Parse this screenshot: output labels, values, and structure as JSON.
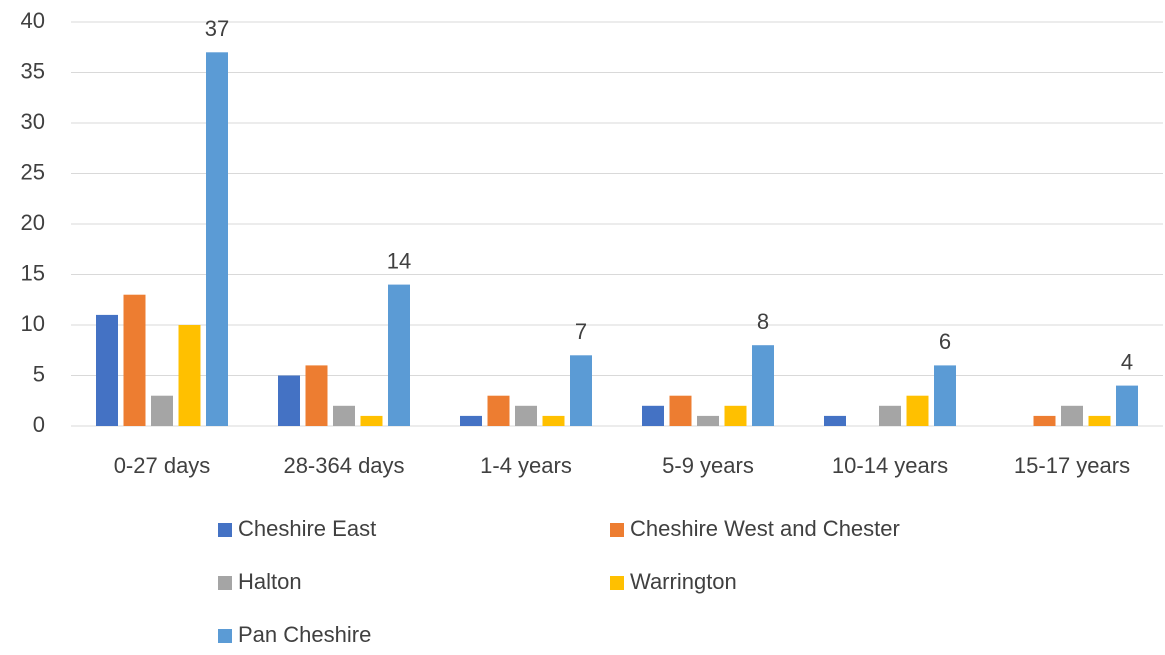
{
  "chart_data": {
    "type": "bar",
    "categories": [
      "0-27 days",
      "28-364 days",
      "1-4 years",
      "5-9 years",
      "10-14 years",
      "15-17 years"
    ],
    "series": [
      {
        "name": "Cheshire East",
        "color": "#4472c4",
        "values": [
          11,
          5,
          1,
          2,
          1,
          0
        ]
      },
      {
        "name": "Cheshire West and Chester",
        "color": "#ed7d31",
        "values": [
          13,
          6,
          3,
          3,
          0,
          1
        ]
      },
      {
        "name": "Halton",
        "color": "#a5a5a5",
        "values": [
          3,
          2,
          2,
          1,
          2,
          2
        ]
      },
      {
        "name": "Warrington",
        "color": "#ffc000",
        "values": [
          10,
          1,
          1,
          2,
          3,
          1
        ]
      },
      {
        "name": "Pan Cheshire",
        "color": "#5b9bd5",
        "values": [
          37,
          14,
          7,
          8,
          6,
          4
        ],
        "data_labels": true
      }
    ],
    "ylim": [
      0,
      40
    ],
    "yticks": [
      0,
      5,
      10,
      15,
      20,
      25,
      30,
      35,
      40
    ],
    "grid": true,
    "legend": "bottom"
  }
}
